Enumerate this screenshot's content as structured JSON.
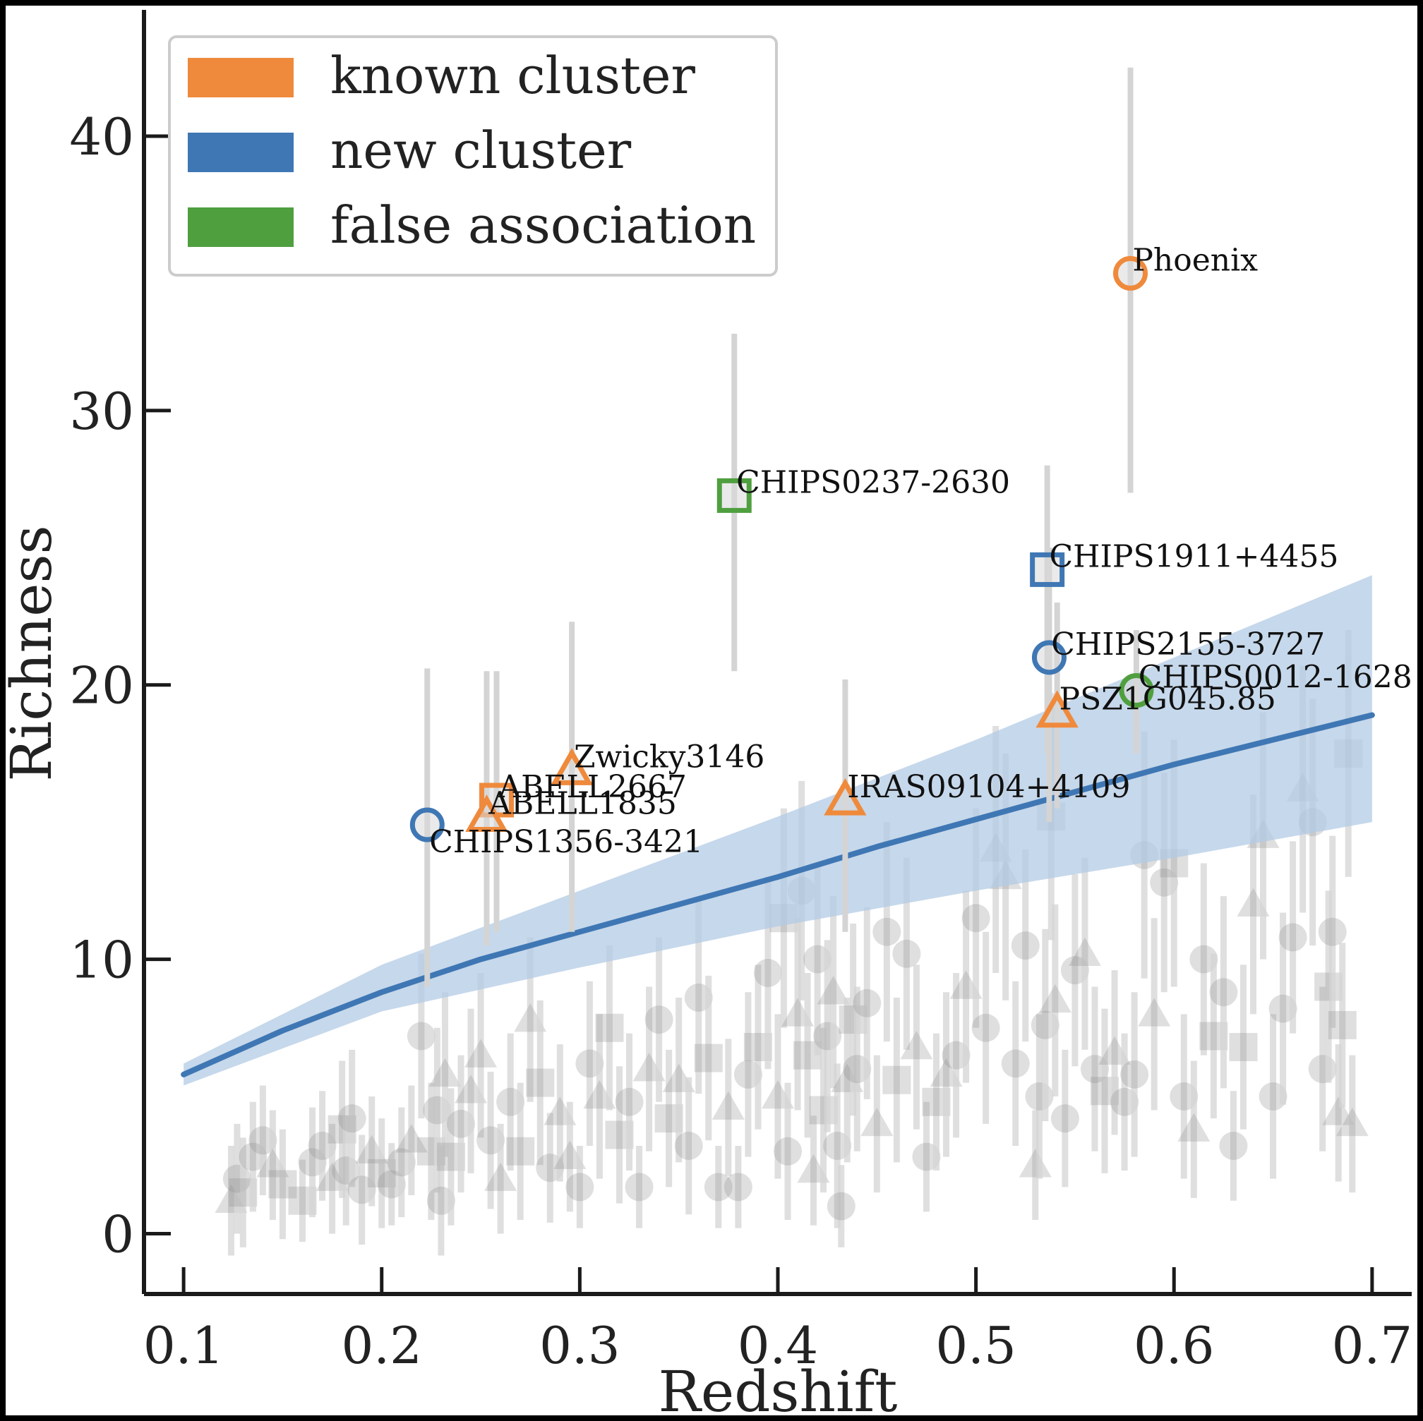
{
  "chart_data": {
    "type": "scatter",
    "title": "",
    "xlabel": "Redshift",
    "ylabel": "Richness",
    "xlim": [
      0.08,
      0.72
    ],
    "ylim": [
      -2.2,
      44.5
    ],
    "xticks": [
      0.1,
      0.2,
      0.3,
      0.4,
      0.5,
      0.6,
      0.7
    ],
    "xtick_labels": [
      "0.1",
      "0.2",
      "0.3",
      "0.4",
      "0.5",
      "0.6",
      "0.7"
    ],
    "yticks": [
      0,
      10,
      20,
      30,
      40
    ],
    "ytick_labels": [
      "0",
      "10",
      "20",
      "30",
      "40"
    ],
    "grid": false,
    "legend_position": "top-left",
    "legend": [
      {
        "label": "known cluster",
        "color": "#ef8a3c"
      },
      {
        "label": "new cluster",
        "color": "#3f77b4"
      },
      {
        "label": "false association",
        "color": "#4f9f3f"
      }
    ],
    "colors": {
      "known": "#ef8a3c",
      "new": "#3f77b4",
      "false": "#4f9f3f",
      "background": "#8c8c8c",
      "errorbar": "#d4d4d4",
      "band": "#b3cbe4",
      "fit_line": "#3f77b4"
    },
    "fit_line": {
      "x": [
        0.1,
        0.15,
        0.2,
        0.25,
        0.3,
        0.35,
        0.4,
        0.45,
        0.5,
        0.55,
        0.6,
        0.65,
        0.7
      ],
      "y": [
        5.8,
        7.4,
        8.8,
        10.0,
        11.0,
        12.0,
        13.0,
        14.1,
        15.1,
        16.1,
        17.1,
        18.0,
        18.9
      ]
    },
    "confidence_band": {
      "x": [
        0.1,
        0.2,
        0.3,
        0.4,
        0.5,
        0.6,
        0.7
      ],
      "lower": [
        5.4,
        8.1,
        9.7,
        11.2,
        12.5,
        13.7,
        15.0
      ],
      "upper": [
        6.2,
        9.8,
        12.5,
        15.2,
        18.0,
        21.0,
        24.0
      ]
    },
    "highlighted_points": [
      {
        "label": "Phoenix",
        "x": 0.578,
        "y": 35.0,
        "err": [
          27.0,
          42.5
        ],
        "marker": "circle",
        "category": "known",
        "label_dx": 0.001,
        "label_dy": 0.1
      },
      {
        "label": "CHIPS0237-2630",
        "x": 0.378,
        "y": 26.9,
        "err": [
          20.5,
          32.8
        ],
        "marker": "square",
        "category": "false",
        "label_dx": 0.001,
        "label_dy": 0.1
      },
      {
        "label": "CHIPS1911+4455",
        "x": 0.536,
        "y": 24.2,
        "err": [
          17.5,
          28.0
        ],
        "marker": "square",
        "category": "new",
        "label_dx": 0.001,
        "label_dy": 0.1
      },
      {
        "label": "CHIPS2155-3727",
        "x": 0.537,
        "y": 21.0,
        "err": [
          15.0,
          25.0
        ],
        "marker": "circle",
        "category": "new",
        "label_dx": 0.001,
        "label_dy": 0.1
      },
      {
        "label": "CHIPS0012-1628",
        "x": 0.581,
        "y": 19.8,
        "err": [
          17.5,
          22.0
        ],
        "marker": "circle",
        "category": "false",
        "label_dx": 0.001,
        "label_dy": 0.1
      },
      {
        "label": "PSZ1G045.85",
        "x": 0.541,
        "y": 19.0,
        "err": [
          15.5,
          23.0
        ],
        "marker": "triangle",
        "category": "known",
        "label_dx": 0.001,
        "label_dy": 0.1
      },
      {
        "label": "Zwicky3146",
        "x": 0.296,
        "y": 16.9,
        "err": [
          11.0,
          22.3
        ],
        "marker": "triangle",
        "category": "known",
        "label_dx": 0.001,
        "label_dy": 0.1
      },
      {
        "label": "ABELL2667",
        "x": 0.258,
        "y": 15.8,
        "err": [
          11.0,
          20.5
        ],
        "marker": "square",
        "category": "known",
        "label_dx": 0.001,
        "label_dy": 0.1
      },
      {
        "label": "IRAS09104+4109",
        "x": 0.434,
        "y": 15.8,
        "err": [
          11.0,
          20.2
        ],
        "marker": "triangle",
        "category": "known",
        "label_dx": 0.001,
        "label_dy": 0.1
      },
      {
        "label": "ABELL1835",
        "x": 0.253,
        "y": 15.2,
        "err": [
          10.5,
          20.5
        ],
        "marker": "triangle",
        "category": "known",
        "label_dx": 0.001,
        "label_dy": 0.1
      },
      {
        "label": "CHIPS1356-3421",
        "x": 0.223,
        "y": 14.9,
        "err": [
          9.0,
          20.6
        ],
        "marker": "circle",
        "category": "new",
        "label_dx": 0.001,
        "label_dy": -1.0
      }
    ],
    "background_points": [
      {
        "x": 0.124,
        "y": 1.2,
        "m": "t",
        "e": 2.0
      },
      {
        "x": 0.127,
        "y": 2.0,
        "m": "c",
        "e": 2.0
      },
      {
        "x": 0.13,
        "y": 1.5,
        "m": "s",
        "e": 2.0
      },
      {
        "x": 0.135,
        "y": 2.8,
        "m": "c",
        "e": 2.0
      },
      {
        "x": 0.14,
        "y": 3.4,
        "m": "c",
        "e": 2.0
      },
      {
        "x": 0.145,
        "y": 2.5,
        "m": "t",
        "e": 2.0
      },
      {
        "x": 0.15,
        "y": 1.8,
        "m": "s",
        "e": 2.0
      },
      {
        "x": 0.16,
        "y": 1.2,
        "m": "s",
        "e": 1.5
      },
      {
        "x": 0.165,
        "y": 2.6,
        "m": "c",
        "e": 2.0
      },
      {
        "x": 0.17,
        "y": 3.2,
        "m": "c",
        "e": 2.0
      },
      {
        "x": 0.175,
        "y": 2.0,
        "m": "t",
        "e": 2.0
      },
      {
        "x": 0.18,
        "y": 3.8,
        "m": "s",
        "e": 2.5
      },
      {
        "x": 0.182,
        "y": 2.3,
        "m": "c",
        "e": 2.0
      },
      {
        "x": 0.185,
        "y": 4.2,
        "m": "c",
        "e": 2.5
      },
      {
        "x": 0.19,
        "y": 1.6,
        "m": "c",
        "e": 2.0
      },
      {
        "x": 0.195,
        "y": 3.0,
        "m": "t",
        "e": 2.0
      },
      {
        "x": 0.2,
        "y": 2.2,
        "m": "s",
        "e": 2.0
      },
      {
        "x": 0.205,
        "y": 1.8,
        "m": "c",
        "e": 1.5
      },
      {
        "x": 0.21,
        "y": 2.6,
        "m": "c",
        "e": 2.0
      },
      {
        "x": 0.215,
        "y": 3.4,
        "m": "t",
        "e": 2.0
      },
      {
        "x": 0.22,
        "y": 7.2,
        "m": "c",
        "e": 3.0
      },
      {
        "x": 0.225,
        "y": 3.0,
        "m": "s",
        "e": 2.5
      },
      {
        "x": 0.228,
        "y": 4.5,
        "m": "c",
        "e": 3.0
      },
      {
        "x": 0.23,
        "y": 1.2,
        "m": "c",
        "e": 2.0
      },
      {
        "x": 0.232,
        "y": 5.8,
        "m": "t",
        "e": 3.0
      },
      {
        "x": 0.235,
        "y": 2.8,
        "m": "s",
        "e": 2.5
      },
      {
        "x": 0.24,
        "y": 4.0,
        "m": "c",
        "e": 2.5
      },
      {
        "x": 0.245,
        "y": 5.2,
        "m": "t",
        "e": 3.0
      },
      {
        "x": 0.25,
        "y": 6.5,
        "m": "t",
        "e": 3.0
      },
      {
        "x": 0.255,
        "y": 3.4,
        "m": "c",
        "e": 2.5
      },
      {
        "x": 0.26,
        "y": 2.0,
        "m": "t",
        "e": 2.0
      },
      {
        "x": 0.265,
        "y": 4.8,
        "m": "c",
        "e": 2.5
      },
      {
        "x": 0.27,
        "y": 3.0,
        "m": "s",
        "e": 2.5
      },
      {
        "x": 0.275,
        "y": 7.8,
        "m": "t",
        "e": 3.0
      },
      {
        "x": 0.28,
        "y": 5.5,
        "m": "s",
        "e": 3.0
      },
      {
        "x": 0.285,
        "y": 2.4,
        "m": "c",
        "e": 2.0
      },
      {
        "x": 0.29,
        "y": 4.4,
        "m": "t",
        "e": 2.5
      },
      {
        "x": 0.295,
        "y": 2.8,
        "m": "t",
        "e": 2.0
      },
      {
        "x": 0.3,
        "y": 1.7,
        "m": "c",
        "e": 1.5
      },
      {
        "x": 0.305,
        "y": 6.2,
        "m": "c",
        "e": 3.0
      },
      {
        "x": 0.31,
        "y": 5.0,
        "m": "t",
        "e": 3.0
      },
      {
        "x": 0.315,
        "y": 7.5,
        "m": "s",
        "e": 3.0
      },
      {
        "x": 0.32,
        "y": 3.6,
        "m": "s",
        "e": 2.5
      },
      {
        "x": 0.325,
        "y": 4.8,
        "m": "c",
        "e": 2.5
      },
      {
        "x": 0.33,
        "y": 1.7,
        "m": "c",
        "e": 1.5
      },
      {
        "x": 0.335,
        "y": 6.0,
        "m": "t",
        "e": 3.0
      },
      {
        "x": 0.34,
        "y": 7.8,
        "m": "c",
        "e": 3.0
      },
      {
        "x": 0.345,
        "y": 4.2,
        "m": "s",
        "e": 2.5
      },
      {
        "x": 0.35,
        "y": 5.6,
        "m": "t",
        "e": 3.0
      },
      {
        "x": 0.355,
        "y": 3.2,
        "m": "c",
        "e": 2.5
      },
      {
        "x": 0.36,
        "y": 8.6,
        "m": "c",
        "e": 3.5
      },
      {
        "x": 0.365,
        "y": 6.4,
        "m": "s",
        "e": 3.0
      },
      {
        "x": 0.37,
        "y": 1.7,
        "m": "c",
        "e": 1.5
      },
      {
        "x": 0.375,
        "y": 4.6,
        "m": "t",
        "e": 2.5
      },
      {
        "x": 0.38,
        "y": 1.7,
        "m": "c",
        "e": 1.5
      },
      {
        "x": 0.385,
        "y": 5.8,
        "m": "c",
        "e": 3.0
      },
      {
        "x": 0.39,
        "y": 6.8,
        "m": "s",
        "e": 3.0
      },
      {
        "x": 0.395,
        "y": 9.5,
        "m": "c",
        "e": 3.5
      },
      {
        "x": 0.4,
        "y": 5.0,
        "m": "t",
        "e": 3.0
      },
      {
        "x": 0.403,
        "y": 11.5,
        "m": "s",
        "e": 4.0
      },
      {
        "x": 0.405,
        "y": 3.0,
        "m": "c",
        "e": 2.5
      },
      {
        "x": 0.41,
        "y": 8.0,
        "m": "t",
        "e": 3.5
      },
      {
        "x": 0.412,
        "y": 12.5,
        "m": "c",
        "e": 4.0
      },
      {
        "x": 0.415,
        "y": 6.5,
        "m": "s",
        "e": 3.0
      },
      {
        "x": 0.418,
        "y": 2.3,
        "m": "t",
        "e": 2.0
      },
      {
        "x": 0.42,
        "y": 10.0,
        "m": "c",
        "e": 3.5
      },
      {
        "x": 0.423,
        "y": 4.5,
        "m": "s",
        "e": 3.0
      },
      {
        "x": 0.425,
        "y": 7.2,
        "m": "c",
        "e": 3.5
      },
      {
        "x": 0.428,
        "y": 8.8,
        "m": "t",
        "e": 3.5
      },
      {
        "x": 0.43,
        "y": 3.2,
        "m": "c",
        "e": 3.0
      },
      {
        "x": 0.432,
        "y": 1.0,
        "m": "c",
        "e": 1.5
      },
      {
        "x": 0.435,
        "y": 5.6,
        "m": "t",
        "e": 3.0
      },
      {
        "x": 0.438,
        "y": 7.8,
        "m": "s",
        "e": 3.5
      },
      {
        "x": 0.44,
        "y": 6.0,
        "m": "c",
        "e": 3.0
      },
      {
        "x": 0.445,
        "y": 8.4,
        "m": "c",
        "e": 3.5
      },
      {
        "x": 0.45,
        "y": 4.0,
        "m": "t",
        "e": 2.5
      },
      {
        "x": 0.455,
        "y": 11.0,
        "m": "c",
        "e": 4.0
      },
      {
        "x": 0.46,
        "y": 5.6,
        "m": "s",
        "e": 3.0
      },
      {
        "x": 0.465,
        "y": 10.2,
        "m": "c",
        "e": 3.5
      },
      {
        "x": 0.47,
        "y": 6.8,
        "m": "t",
        "e": 3.0
      },
      {
        "x": 0.475,
        "y": 2.8,
        "m": "c",
        "e": 2.0
      },
      {
        "x": 0.48,
        "y": 4.8,
        "m": "s",
        "e": 2.5
      },
      {
        "x": 0.485,
        "y": 5.8,
        "m": "t",
        "e": 3.0
      },
      {
        "x": 0.49,
        "y": 6.5,
        "m": "c",
        "e": 3.0
      },
      {
        "x": 0.495,
        "y": 9.0,
        "m": "t",
        "e": 3.5
      },
      {
        "x": 0.5,
        "y": 11.5,
        "m": "c",
        "e": 4.0
      },
      {
        "x": 0.505,
        "y": 7.5,
        "m": "c",
        "e": 3.5
      },
      {
        "x": 0.51,
        "y": 14.0,
        "m": "t",
        "e": 4.5
      },
      {
        "x": 0.515,
        "y": 13.0,
        "m": "t",
        "e": 4.5
      },
      {
        "x": 0.52,
        "y": 6.2,
        "m": "c",
        "e": 3.0
      },
      {
        "x": 0.525,
        "y": 10.5,
        "m": "c",
        "e": 3.5
      },
      {
        "x": 0.53,
        "y": 2.5,
        "m": "t",
        "e": 2.0
      },
      {
        "x": 0.532,
        "y": 5.0,
        "m": "c",
        "e": 3.0
      },
      {
        "x": 0.535,
        "y": 7.6,
        "m": "c",
        "e": 3.5
      },
      {
        "x": 0.538,
        "y": 15.2,
        "m": "s",
        "e": 4.5
      },
      {
        "x": 0.54,
        "y": 8.5,
        "m": "t",
        "e": 3.5
      },
      {
        "x": 0.545,
        "y": 4.2,
        "m": "c",
        "e": 2.5
      },
      {
        "x": 0.55,
        "y": 9.6,
        "m": "c",
        "e": 3.5
      },
      {
        "x": 0.555,
        "y": 10.2,
        "m": "t",
        "e": 3.5
      },
      {
        "x": 0.56,
        "y": 6.0,
        "m": "c",
        "e": 3.0
      },
      {
        "x": 0.565,
        "y": 5.2,
        "m": "s",
        "e": 3.0
      },
      {
        "x": 0.57,
        "y": 6.6,
        "m": "t",
        "e": 3.0
      },
      {
        "x": 0.575,
        "y": 4.8,
        "m": "c",
        "e": 2.5
      },
      {
        "x": 0.58,
        "y": 5.8,
        "m": "c",
        "e": 3.0
      },
      {
        "x": 0.585,
        "y": 13.8,
        "m": "c",
        "e": 4.5
      },
      {
        "x": 0.59,
        "y": 8.0,
        "m": "t",
        "e": 3.5
      },
      {
        "x": 0.595,
        "y": 12.8,
        "m": "c",
        "e": 4.0
      },
      {
        "x": 0.6,
        "y": 13.5,
        "m": "s",
        "e": 4.5
      },
      {
        "x": 0.605,
        "y": 5.0,
        "m": "c",
        "e": 3.0
      },
      {
        "x": 0.61,
        "y": 3.8,
        "m": "t",
        "e": 2.5
      },
      {
        "x": 0.615,
        "y": 10.0,
        "m": "c",
        "e": 3.5
      },
      {
        "x": 0.62,
        "y": 7.2,
        "m": "s",
        "e": 3.0
      },
      {
        "x": 0.625,
        "y": 8.8,
        "m": "c",
        "e": 3.5
      },
      {
        "x": 0.63,
        "y": 3.2,
        "m": "c",
        "e": 2.0
      },
      {
        "x": 0.635,
        "y": 6.8,
        "m": "s",
        "e": 3.0
      },
      {
        "x": 0.64,
        "y": 12.0,
        "m": "t",
        "e": 4.0
      },
      {
        "x": 0.645,
        "y": 14.5,
        "m": "t",
        "e": 4.5
      },
      {
        "x": 0.65,
        "y": 5.0,
        "m": "c",
        "e": 3.0
      },
      {
        "x": 0.655,
        "y": 8.2,
        "m": "c",
        "e": 3.5
      },
      {
        "x": 0.66,
        "y": 10.8,
        "m": "c",
        "e": 3.5
      },
      {
        "x": 0.665,
        "y": 16.2,
        "m": "t",
        "e": 4.5
      },
      {
        "x": 0.67,
        "y": 15.0,
        "m": "c",
        "e": 4.5
      },
      {
        "x": 0.675,
        "y": 6.0,
        "m": "c",
        "e": 3.0
      },
      {
        "x": 0.678,
        "y": 9.0,
        "m": "s",
        "e": 3.5
      },
      {
        "x": 0.68,
        "y": 11.0,
        "m": "c",
        "e": 3.5
      },
      {
        "x": 0.683,
        "y": 4.4,
        "m": "t",
        "e": 2.5
      },
      {
        "x": 0.685,
        "y": 7.6,
        "m": "s",
        "e": 3.0
      },
      {
        "x": 0.688,
        "y": 17.5,
        "m": "s",
        "e": 4.5
      },
      {
        "x": 0.69,
        "y": 4.0,
        "m": "t",
        "e": 2.5
      }
    ]
  }
}
